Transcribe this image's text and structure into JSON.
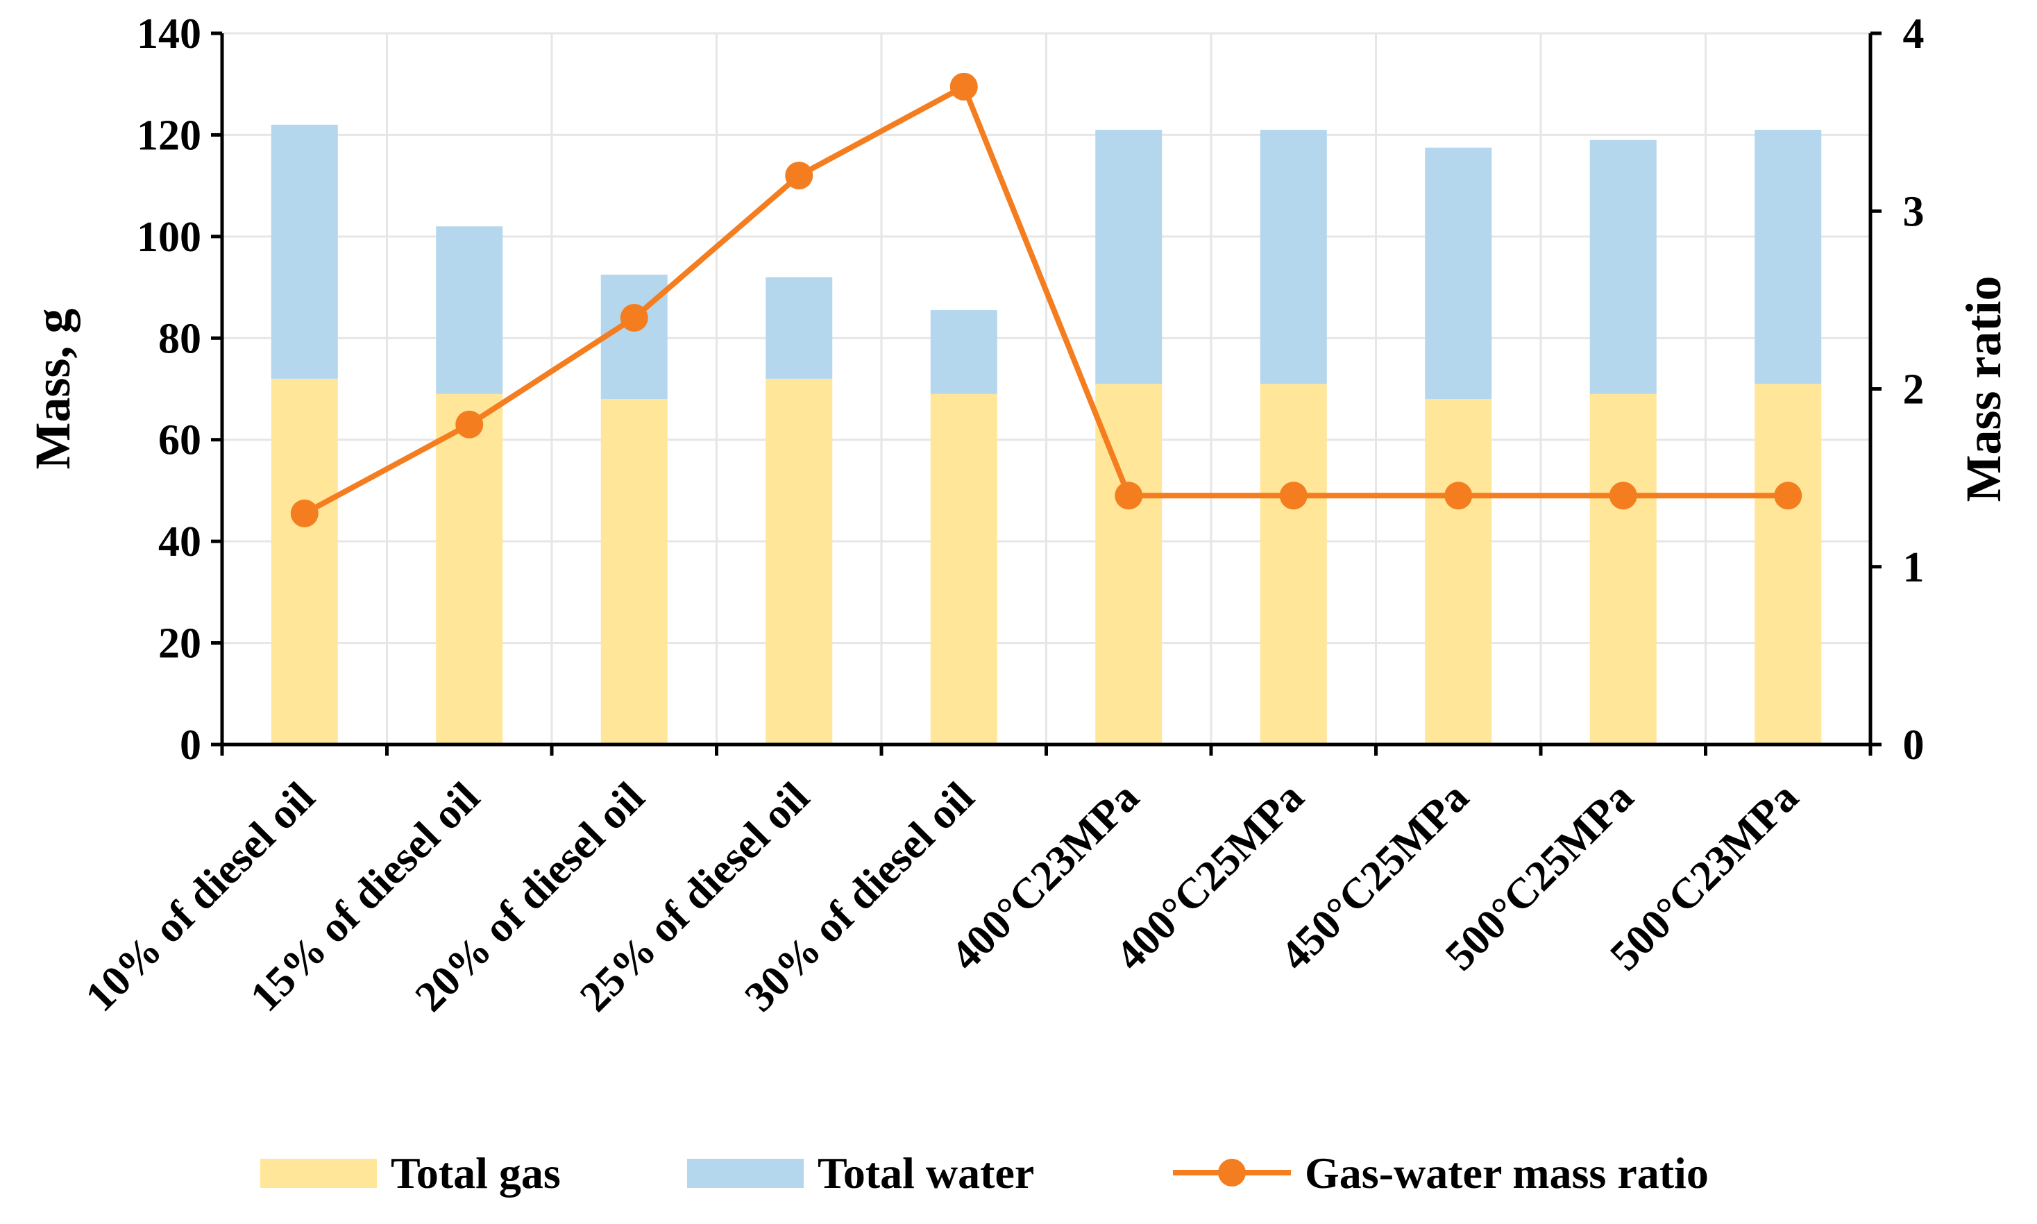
{
  "chart_data": {
    "type": "bar",
    "stacked": true,
    "categories": [
      "10% of diesel oil",
      "15% of diesel oil",
      "20% of diesel oil",
      "25% of diesel oil",
      "30% of diesel oil",
      "400°C23MPa",
      "400°C25MPa",
      "450°C25MPa",
      "500°C25MPa",
      "500°C23MPa"
    ],
    "series": [
      {
        "name": "Total gas",
        "type": "bar",
        "axis": "left",
        "color": "#ffe699",
        "values": [
          72,
          69,
          68,
          72,
          69,
          71,
          71,
          68,
          69,
          71
        ]
      },
      {
        "name": "Total water",
        "type": "bar",
        "axis": "left",
        "color": "#b4d7ee",
        "values": [
          50,
          33,
          24.5,
          20,
          16.5,
          50,
          50,
          49.5,
          50,
          50
        ]
      },
      {
        "name": "Gas-water mass ratio",
        "type": "line",
        "axis": "right",
        "color": "#f47d20",
        "values": [
          1.3,
          1.8,
          2.4,
          3.2,
          3.7,
          1.4,
          1.4,
          1.4,
          1.4,
          1.4
        ]
      }
    ],
    "title": "",
    "ylabel": "Mass, g",
    "y2label": "Mass ratio",
    "xlabel": "",
    "ylim": [
      0,
      140
    ],
    "y2lim": [
      0,
      4
    ],
    "yticks": [
      "0",
      "20",
      "40",
      "60",
      "80",
      "100",
      "120",
      "140"
    ],
    "y2ticks": [
      "0",
      "1",
      "2",
      "3",
      "4"
    ],
    "grid": true,
    "legend_position": "bottom"
  }
}
